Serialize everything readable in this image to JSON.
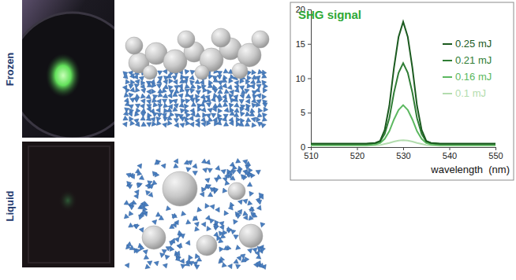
{
  "panels": [
    {
      "label": "Frozen"
    },
    {
      "label": "Liquid"
    }
  ],
  "chart_data": {
    "type": "line",
    "title": "SHG signal",
    "x_label": "wavelength  (nm)",
    "x": [
      510,
      512,
      514,
      516,
      518,
      520,
      522,
      524,
      525,
      526,
      527,
      528,
      529,
      530,
      531,
      532,
      533,
      534,
      535,
      536,
      538,
      540,
      542,
      544,
      546,
      548,
      550
    ],
    "series": [
      {
        "name": "0.25 mJ",
        "color": "#1b5a1f",
        "values": [
          0.5,
          0.5,
          0.5,
          0.5,
          0.5,
          0.5,
          0.5,
          0.6,
          0.9,
          2.5,
          6,
          11.5,
          16,
          18.2,
          16,
          11.5,
          6,
          2.5,
          0.9,
          0.6,
          0.5,
          0.5,
          0.5,
          0.5,
          0.5,
          0.5,
          0.5
        ]
      },
      {
        "name": "0.21 mJ",
        "color": "#2f7d35",
        "values": [
          0.5,
          0.5,
          0.5,
          0.5,
          0.5,
          0.5,
          0.5,
          0.6,
          0.8,
          1.9,
          4.2,
          7.9,
          10.8,
          12.2,
          10.8,
          7.9,
          4.2,
          1.9,
          0.8,
          0.6,
          0.5,
          0.5,
          0.5,
          0.5,
          0.5,
          0.5,
          0.5
        ]
      },
      {
        "name": "0.16 mJ",
        "color": "#5cb860",
        "values": [
          0.3,
          0.3,
          0.3,
          0.3,
          0.3,
          0.3,
          0.3,
          0.4,
          0.6,
          1.2,
          2.3,
          4,
          5.4,
          6.1,
          5.4,
          4,
          2.3,
          1.2,
          0.6,
          0.4,
          0.3,
          0.3,
          0.3,
          0.3,
          0.3,
          0.3,
          0.3
        ]
      },
      {
        "name": "0.1 mJ",
        "color": "#b3dcae",
        "values": [
          0.2,
          0.2,
          0.2,
          0.2,
          0.2,
          0.2,
          0.2,
          0.25,
          0.3,
          0.45,
          0.6,
          0.8,
          0.95,
          1,
          0.95,
          0.8,
          0.6,
          0.45,
          0.3,
          0.25,
          0.2,
          0.2,
          0.2,
          0.2,
          0.2,
          0.2,
          0.2
        ]
      }
    ],
    "xlim": [
      510,
      550
    ],
    "xticks": [
      510,
      520,
      530,
      540,
      550
    ],
    "ylim": [
      0,
      20
    ],
    "yticks": [
      0,
      5,
      10,
      15,
      20
    ],
    "legend": "upper right",
    "grid": false
  }
}
